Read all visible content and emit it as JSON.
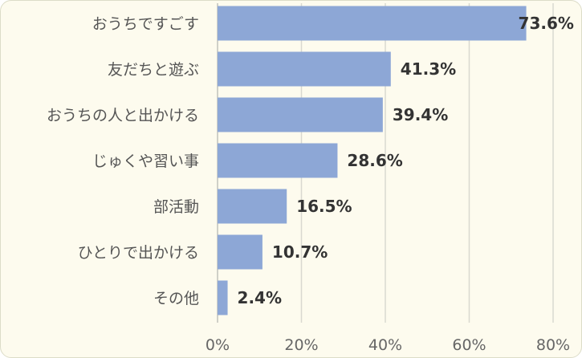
{
  "chart_data": {
    "type": "bar",
    "orientation": "horizontal",
    "categories": [
      "おうちですごす",
      "友だちと遊ぶ",
      "おうちの人と出かける",
      "じゅくや習い事",
      "部活動",
      "ひとりで出かける",
      "その他"
    ],
    "values": [
      73.6,
      41.3,
      39.4,
      28.6,
      16.5,
      10.7,
      2.4
    ],
    "value_labels": [
      "73.6%",
      "41.3%",
      "39.4%",
      "28.6%",
      "16.5%",
      "10.7%",
      "2.4%"
    ],
    "xlim": [
      0,
      80
    ],
    "xticks": [
      0,
      20,
      40,
      60,
      80
    ],
    "xtick_labels": [
      "0%",
      "20%",
      "40%",
      "60%",
      "80%"
    ],
    "grid": true,
    "colors": {
      "bar": "#8da7d6",
      "grid": "#d9d9d0",
      "background": "#fdfbee"
    }
  }
}
